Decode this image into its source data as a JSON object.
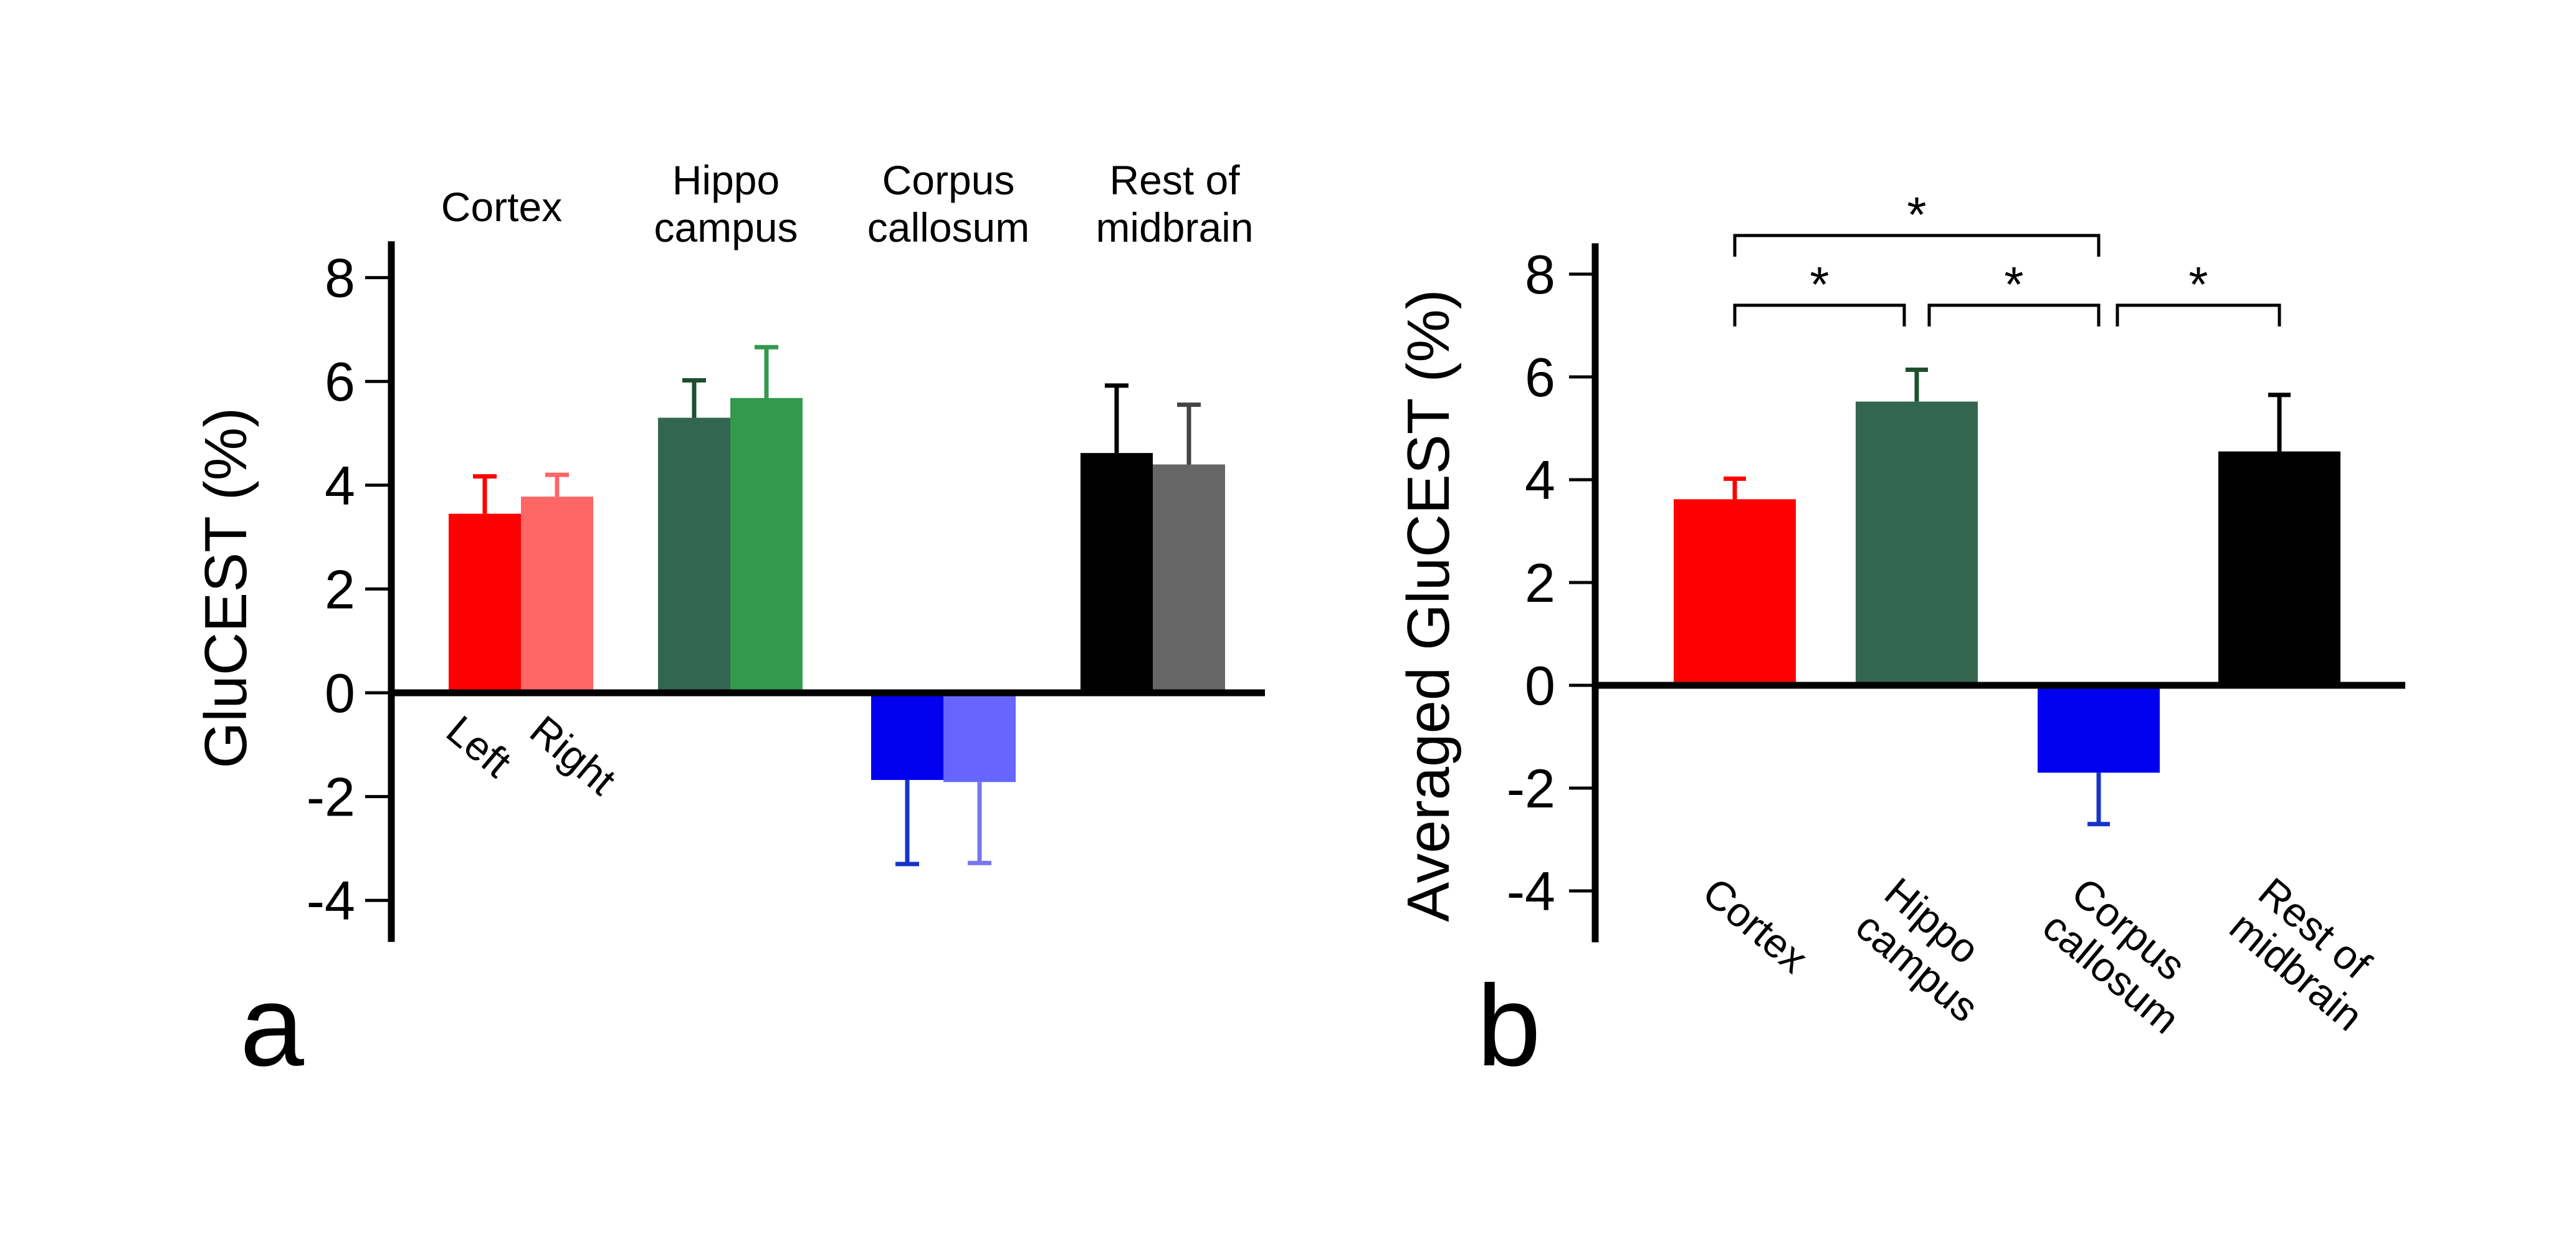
{
  "chart_data": [
    {
      "panel": "a",
      "type": "bar",
      "ylabel": "GluCEST (%)",
      "ylim": [
        -4.8,
        8.7
      ],
      "yticks": [
        8,
        6,
        4,
        2,
        0,
        -2,
        -4
      ],
      "ytick_labels": [
        "8",
        "6",
        "4",
        "2",
        "0",
        "-2",
        "-4"
      ],
      "categories": [
        "Cortex",
        "Hippo\ncampus",
        "Corpus\ncallosum",
        "Rest of\nmidbrain"
      ],
      "hemisphere_labels": [
        "Left",
        "Right"
      ],
      "bars": [
        {
          "group": 0,
          "side": "Left",
          "value": 3.45,
          "error": 0.72,
          "color": "#ff0000",
          "error_color": "#ff0000"
        },
        {
          "group": 0,
          "side": "Right",
          "value": 3.78,
          "error": 0.42,
          "color": "#ff6666",
          "error_color": "#ff6666"
        },
        {
          "group": 1,
          "side": "Left",
          "value": 5.3,
          "error": 0.72,
          "color": "#336650",
          "error_color": "#1d4f2e"
        },
        {
          "group": 1,
          "side": "Right",
          "value": 5.68,
          "error": 0.98,
          "color": "#33994d",
          "error_color": "#33994d"
        },
        {
          "group": 2,
          "side": "Left",
          "value": -1.68,
          "error": 1.62,
          "color": "#0000ee",
          "error_color": "#1535c8"
        },
        {
          "group": 2,
          "side": "Right",
          "value": -1.72,
          "error": 1.56,
          "color": "#6666ff",
          "error_color": "#7777ee"
        },
        {
          "group": 3,
          "side": "Left",
          "value": 4.62,
          "error": 1.3,
          "color": "#000000",
          "error_color": "#000000"
        },
        {
          "group": 3,
          "side": "Right",
          "value": 4.4,
          "error": 1.15,
          "color": "#666666",
          "error_color": "#444444"
        }
      ]
    },
    {
      "panel": "b",
      "type": "bar",
      "ylabel": "Averaged GluCEST (%)",
      "ylim": [
        -5.0,
        8.6
      ],
      "yticks": [
        8,
        6,
        4,
        2,
        0,
        -2,
        -4
      ],
      "ytick_labels": [
        "8",
        "6",
        "4",
        "2",
        "0",
        "-2",
        "-4"
      ],
      "categories": [
        "Cortex",
        "Hippo\ncampus",
        "Corpus\ncallosum",
        "Rest of\nmidbrain"
      ],
      "bars": [
        {
          "value": 3.62,
          "error": 0.4,
          "color": "#ff0000",
          "error_color": "#ff0000"
        },
        {
          "value": 5.52,
          "error": 0.62,
          "color": "#336650",
          "error_color": "#1d4f2e"
        },
        {
          "value": -1.7,
          "error": 1.0,
          "color": "#0000ee",
          "error_color": "#1535c8"
        },
        {
          "value": 4.55,
          "error": 1.1,
          "color": "#000000",
          "error_color": "#000000"
        }
      ],
      "significance": [
        {
          "from": 0,
          "to": 2,
          "label": "*"
        },
        {
          "from": 0,
          "to": 1,
          "label": "*"
        },
        {
          "from": 1,
          "to": 2,
          "label": "*"
        },
        {
          "from": 2,
          "to": 3,
          "label": "*"
        }
      ]
    }
  ]
}
